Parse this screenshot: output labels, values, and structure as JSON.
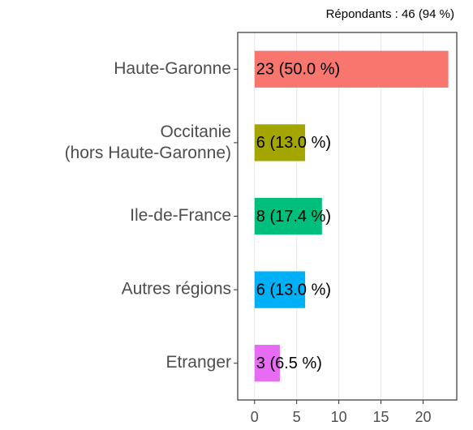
{
  "chart_data": {
    "type": "hbar",
    "subtitle": "Répondants : 46 (94 %)",
    "categories": [
      "Haute-Garonne",
      "Occitanie\n(hors Haute-Garonne)",
      "Ile-de-France",
      "Autres régions",
      "Etranger"
    ],
    "values": [
      23,
      6,
      8,
      6,
      3
    ],
    "value_labels": [
      "23 (50.0 %)",
      "6 (13.0 %)",
      "8 (17.4 %)",
      "6 (13.0 %)",
      "3 (6.5 %)"
    ],
    "colors": [
      "#F8766D",
      "#A3A500",
      "#00BF7D",
      "#00B0F6",
      "#E76BF3"
    ],
    "xlim": [
      -2,
      24
    ],
    "xticks": [
      0,
      5,
      10,
      15,
      20
    ],
    "grid": true
  }
}
